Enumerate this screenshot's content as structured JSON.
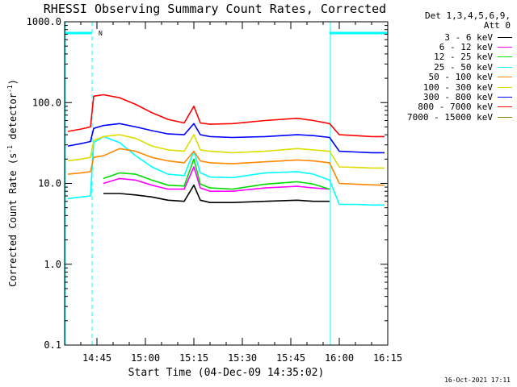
{
  "chart_data": {
    "type": "line",
    "title": "RHESSI Observing Summary Count Rates, Corrected",
    "xlabel": "Start Time (04-Dec-09 14:35:02)",
    "ylabel_main": "Corrected Count Rate (s",
    "ylabel_sup1": "-1",
    "ylabel_mid": " detector",
    "ylabel_sup2": "-1",
    "ylabel_end": ")",
    "yscale": "log",
    "ylim": [
      0.1,
      1000
    ],
    "xlim_minutes": [
      0,
      100
    ],
    "x_tick_labels": [
      "14:45",
      "15:00",
      "15:15",
      "15:30",
      "15:45",
      "16:00",
      "16:15"
    ],
    "x_tick_minutes": [
      10,
      25,
      40,
      55,
      70,
      85,
      100
    ],
    "y_tick_labels": [
      "0.1",
      "1.0",
      "10.0",
      "100.0",
      "1000.0"
    ],
    "y_tick_values": [
      0.1,
      1,
      10,
      100,
      1000
    ],
    "grid": false,
    "legend_placement": "right-outside",
    "legend_header": [
      "Det 1,3,4,5,6,9,",
      "Att 0"
    ],
    "attenuator_marker_label": "N",
    "night_intervals_minutes": [
      [
        0,
        8.5
      ],
      [
        82,
        100
      ]
    ],
    "x": [
      1,
      5,
      8,
      9,
      12,
      17,
      22,
      27,
      32,
      37,
      40,
      42,
      45,
      52,
      62,
      72,
      77,
      82,
      85,
      90,
      95,
      99
    ],
    "series": [
      {
        "name": "3 - 6 keV",
        "color": "#000000",
        "values": [
          null,
          null,
          null,
          null,
          7.5,
          7.5,
          7.2,
          6.8,
          6.2,
          6.0,
          9.5,
          6.2,
          5.8,
          5.8,
          6.0,
          6.2,
          6.0,
          6.0,
          null,
          null,
          null,
          null
        ]
      },
      {
        "name": "6 - 12 keV",
        "color": "#ff00ff",
        "values": [
          null,
          null,
          null,
          null,
          10,
          11.5,
          11,
          9.5,
          8.5,
          8.5,
          16,
          8.8,
          8,
          8,
          8.8,
          9.2,
          8.8,
          8.5,
          null,
          null,
          null,
          null
        ]
      },
      {
        "name": "12 - 25 keV",
        "color": "#00dd00",
        "values": [
          null,
          null,
          null,
          null,
          11.5,
          13.5,
          13,
          11,
          9.5,
          9.3,
          20,
          9.8,
          8.8,
          8.5,
          9.8,
          10.5,
          9.8,
          8.5,
          null,
          null,
          null,
          null
        ]
      },
      {
        "name": "25 - 50 keV",
        "color": "#00ffff",
        "values": [
          6.5,
          6.8,
          7.0,
          32,
          38,
          32,
          22,
          16,
          13,
          12.5,
          25,
          13.5,
          12,
          11.8,
          13.5,
          14,
          13,
          11,
          5.5,
          5.5,
          5.4,
          5.4
        ]
      },
      {
        "name": "50 - 100 keV",
        "color": "#ff8800",
        "values": [
          13,
          13.5,
          14,
          21,
          22,
          27,
          25,
          21,
          19,
          18,
          25,
          19,
          18,
          17.5,
          18.5,
          19.5,
          19,
          18,
          10,
          9.8,
          9.6,
          9.5
        ]
      },
      {
        "name": "100 - 300 keV",
        "color": "#dddd00",
        "values": [
          19,
          20,
          21,
          34,
          38,
          40,
          36,
          29,
          26,
          25,
          40,
          26,
          25,
          24,
          25,
          27,
          26,
          25,
          16,
          15.8,
          15.5,
          15.5
        ]
      },
      {
        "name": "300 - 800 keV",
        "color": "#0000ff",
        "values": [
          29,
          31,
          33,
          48,
          52,
          55,
          50,
          45,
          41,
          40,
          55,
          40,
          38,
          37,
          38,
          40,
          39,
          37,
          25,
          24.5,
          24,
          24
        ]
      },
      {
        "name": "800 - 7000 keV",
        "color": "#ff0000",
        "values": [
          44,
          47,
          50,
          120,
          125,
          115,
          95,
          75,
          62,
          56,
          90,
          56,
          54,
          55,
          60,
          64,
          60,
          55,
          40,
          39,
          38,
          38
        ]
      },
      {
        "name": "7000 - 15000 keV",
        "color": "#808000",
        "values": [
          null,
          null,
          null,
          null,
          null,
          null,
          null,
          null,
          null,
          null,
          null,
          null,
          null,
          null,
          null,
          null,
          null,
          null,
          null,
          null,
          null,
          null
        ]
      }
    ]
  },
  "footer_date": "16-Oct-2021 17:11"
}
